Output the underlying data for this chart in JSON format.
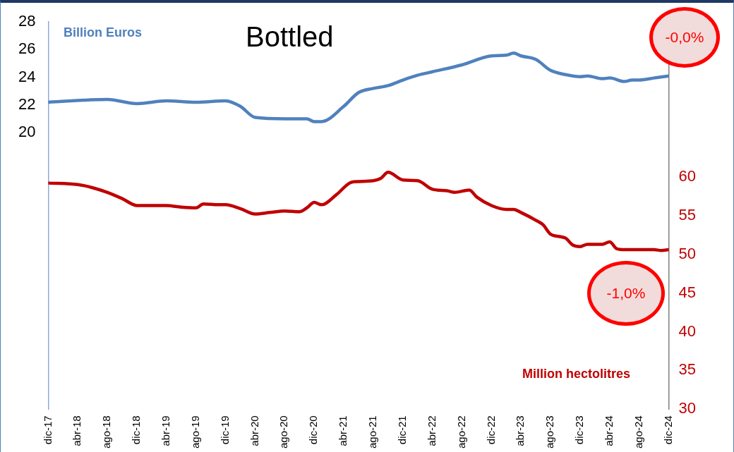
{
  "chart_data": {
    "type": "line",
    "title": "Bottled",
    "ylabel": "Billion Euros",
    "y2label": "Million hectolitres",
    "annotations": [
      "-0,0%",
      "-1,0%"
    ],
    "marker": "none",
    "grid": false,
    "xlim": [
      "2017-12",
      "2024-12"
    ],
    "xticks": [
      {
        "value": "2017-12",
        "label": "dic-17"
      },
      {
        "value": "2018-04",
        "label": "abr-18"
      },
      {
        "value": "2018-08",
        "label": "ago-18"
      },
      {
        "value": "2018-12",
        "label": "dic-18"
      },
      {
        "value": "2019-04",
        "label": "abr-19"
      },
      {
        "value": "2019-08",
        "label": "ago-19"
      },
      {
        "value": "2019-12",
        "label": "dic-19"
      },
      {
        "value": "2020-04",
        "label": "abr-20"
      },
      {
        "value": "2020-08",
        "label": "ago-20"
      },
      {
        "value": "2020-12",
        "label": "dic-20"
      },
      {
        "value": "2021-04",
        "label": "abr-21"
      },
      {
        "value": "2021-08",
        "label": "ago-21"
      },
      {
        "value": "2021-12",
        "label": "dic-21"
      },
      {
        "value": "2022-04",
        "label": "abr-22"
      },
      {
        "value": "2022-08",
        "label": "ago-22"
      },
      {
        "value": "2022-12",
        "label": "dic-22"
      },
      {
        "value": "2023-04",
        "label": "abr-23"
      },
      {
        "value": "2023-08",
        "label": "ago-23"
      },
      {
        "value": "2023-12",
        "label": "dic-23"
      },
      {
        "value": "2024-04",
        "label": "abr-24"
      },
      {
        "value": "2024-08",
        "label": "ago-24"
      },
      {
        "value": "2024-12",
        "label": "dic-24"
      }
    ],
    "ylim": [
      0,
      28
    ],
    "yticks": [
      20,
      22,
      24,
      26,
      28
    ],
    "y2lim": [
      30,
      80
    ],
    "y2ticks": [
      30,
      35,
      40,
      45,
      50,
      55,
      60
    ],
    "series": [
      {
        "color": "#4f81bd",
        "x": [
          "2017-12",
          "2018-08",
          "2018-12",
          "2019-04",
          "2019-08",
          "2019-12",
          "2020-02",
          "2020-04",
          "2020-08",
          "2020-11",
          "2020-12",
          "2021-01",
          "2021-04",
          "2021-06",
          "2021-08",
          "2021-10",
          "2021-12",
          "2022-02",
          "2022-04",
          "2022-08",
          "2022-12",
          "2023-02",
          "2023-03",
          "2023-04",
          "2023-06",
          "2023-08",
          "2023-10",
          "2023-12",
          "2024-01",
          "2024-03",
          "2024-04",
          "2024-06",
          "2024-07",
          "2024-08",
          "2024-10",
          "2024-12"
        ],
        "values": [
          22.2,
          22.4,
          22.1,
          22.3,
          22.2,
          22.3,
          21.9,
          21.1,
          21.0,
          21.0,
          20.8,
          20.8,
          21.9,
          22.9,
          23.2,
          23.4,
          23.8,
          24.15,
          24.4,
          24.9,
          25.55,
          25.6,
          25.75,
          25.55,
          25.3,
          24.5,
          24.2,
          24.05,
          24.1,
          23.9,
          23.95,
          23.7,
          23.8,
          23.8,
          23.95,
          24.1
        ]
      },
      {
        "color": "#c00000",
        "axis": "y2",
        "x": [
          "2017-12",
          "2018-04",
          "2018-06",
          "2018-08",
          "2018-10",
          "2018-12",
          "2019-02",
          "2019-04",
          "2019-06",
          "2019-08",
          "2019-09",
          "2019-11",
          "2019-12",
          "2020-02",
          "2020-04",
          "2020-06",
          "2020-08",
          "2020-10",
          "2020-11",
          "2020-12",
          "2021-01",
          "2021-03",
          "2021-05",
          "2021-06",
          "2021-08",
          "2021-09",
          "2021-10",
          "2021-12",
          "2022-02",
          "2022-04",
          "2022-06",
          "2022-07",
          "2022-09",
          "2022-10",
          "2022-12",
          "2023-02",
          "2023-03",
          "2023-04",
          "2023-06",
          "2023-07",
          "2023-08",
          "2023-10",
          "2023-11",
          "2023-12",
          "2024-01",
          "2024-03",
          "2024-04",
          "2024-05",
          "2024-06",
          "2024-08",
          "2024-10",
          "2024-11",
          "2024-12"
        ],
        "values": [
          59.2,
          59.0,
          58.6,
          58.0,
          57.2,
          56.3,
          56.3,
          56.3,
          56.1,
          56.0,
          56.5,
          56.4,
          56.4,
          55.9,
          55.2,
          55.4,
          55.6,
          55.5,
          56.0,
          56.7,
          56.4,
          57.7,
          59.3,
          59.4,
          59.5,
          59.8,
          60.6,
          59.6,
          59.5,
          58.4,
          58.2,
          58.0,
          58.3,
          57.4,
          56.3,
          55.8,
          55.8,
          55.4,
          54.4,
          53.8,
          52.6,
          52.1,
          51.2,
          51.0,
          51.3,
          51.3,
          51.6,
          50.7,
          50.6,
          50.6,
          50.6,
          50.5,
          50.6
        ]
      }
    ]
  }
}
